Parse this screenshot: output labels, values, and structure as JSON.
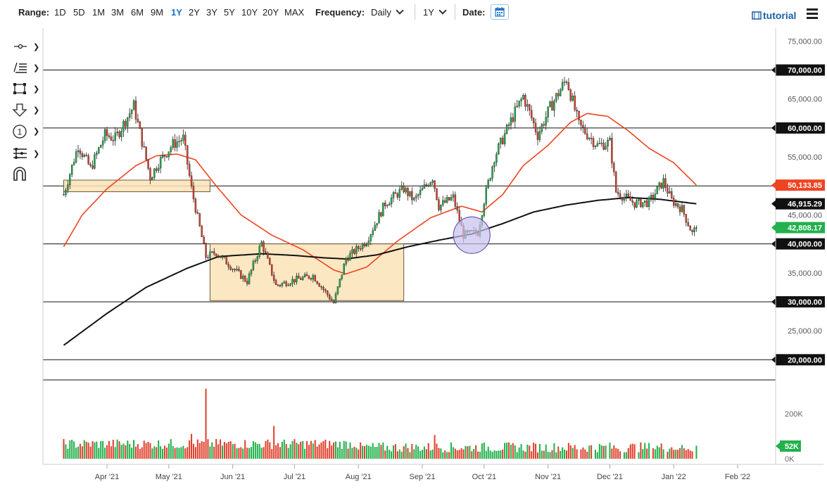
{
  "toolbar": {
    "range_label": "Range:",
    "ranges": [
      "1D",
      "5D",
      "1M",
      "3M",
      "6M",
      "9M",
      "1Y",
      "2Y",
      "3Y",
      "5Y",
      "10Y",
      "20Y",
      "MAX"
    ],
    "active_range": "1Y",
    "frequency_label": "Frequency:",
    "frequency_value": "Daily",
    "period_value": "1Y",
    "date_label": "Date:",
    "tutorial_label": "tutorial"
  },
  "tools": {
    "icons": [
      "crosshair-icon",
      "line-tools-icon",
      "rectangle-tool-icon",
      "arrow-down-tool-icon",
      "number-annotation-icon",
      "fibonacci-tool-icon",
      "magnet-icon"
    ],
    "number_label": "1"
  },
  "colors": {
    "up": "#22b14c",
    "down": "#e0412e",
    "ma_fast": "#ee4422",
    "ma_slow": "#111111",
    "zone_fill": "#fbe3b8",
    "zone_stroke": "#6b5a3a",
    "circle_fill": "#c9c1ee",
    "circle_stroke": "#6a5ab0",
    "badge_dark": "#111111",
    "badge_red": "#ee4422",
    "badge_green": "#22b14c"
  },
  "chart_data": {
    "type": "candlestick",
    "x_axis": {
      "labels": [
        "Apr '21",
        "May '21",
        "Jun '21",
        "Jul '21",
        "Aug '21",
        "Sep '21",
        "Oct '21",
        "Nov '21",
        "Dec '21",
        "Jan '22",
        "Feb '22"
      ]
    },
    "y_axis": {
      "range": [
        17000,
        76500
      ],
      "ticks": [
        "75,000.00",
        "65,000.00",
        "55,000.00",
        "45,000.00",
        "35,000.00",
        "25,000.00"
      ],
      "position": "right"
    },
    "horizontal_levels": [
      {
        "value": 70000,
        "label": "70,000.00"
      },
      {
        "value": 60000,
        "label": "60,000.00"
      },
      {
        "value": 50000,
        "label": ""
      },
      {
        "value": 40000,
        "label": "40,000.00"
      },
      {
        "value": 30000,
        "label": "30,000.00"
      },
      {
        "value": 20000,
        "label": "20,000.00"
      }
    ],
    "price_badges": [
      {
        "value": 50133.85,
        "label": "50,133.85",
        "color": "#ee4422",
        "series": "ma_fast"
      },
      {
        "value": 46915.29,
        "label": "46,915.29",
        "color": "#111111",
        "series": "ma_slow"
      },
      {
        "value": 42808.17,
        "label": "42,808.17",
        "color": "#22b14c",
        "series": "last_price"
      }
    ],
    "zones": [
      {
        "from_date": "2021-03-11",
        "to_date": "2021-05-21",
        "low": 49000,
        "high": 51000
      },
      {
        "from_date": "2021-05-21",
        "to_date": "2021-08-23",
        "low": 30200,
        "high": 40000
      }
    ],
    "circle_annotation": {
      "date": "2021-09-25",
      "price": 41500
    },
    "ohlc_keypoints": [
      [
        "2021-03-11",
        48500
      ],
      [
        "2021-03-18",
        57000
      ],
      [
        "2021-03-24",
        53000
      ],
      [
        "2021-03-31",
        58800
      ],
      [
        "2021-04-05",
        58200
      ],
      [
        "2021-04-14",
        63800
      ],
      [
        "2021-04-22",
        51500
      ],
      [
        "2021-04-26",
        54000
      ],
      [
        "2021-05-03",
        57200
      ],
      [
        "2021-05-08",
        58200
      ],
      [
        "2021-05-12",
        49500
      ],
      [
        "2021-05-19",
        37800
      ],
      [
        "2021-05-24",
        38500
      ],
      [
        "2021-06-08",
        33500
      ],
      [
        "2021-06-15",
        40200
      ],
      [
        "2021-06-22",
        32800
      ],
      [
        "2021-07-01",
        33800
      ],
      [
        "2021-07-10",
        34500
      ],
      [
        "2021-07-20",
        29800
      ],
      [
        "2021-07-26",
        37500
      ],
      [
        "2021-08-05",
        40500
      ],
      [
        "2021-08-14",
        47000
      ],
      [
        "2021-08-23",
        49500
      ],
      [
        "2021-08-28",
        47500
      ],
      [
        "2021-09-06",
        51500
      ],
      [
        "2021-09-09",
        46500
      ],
      [
        "2021-09-16",
        48000
      ],
      [
        "2021-09-21",
        41500
      ],
      [
        "2021-09-28",
        42000
      ],
      [
        "2021-10-01",
        47500
      ],
      [
        "2021-10-06",
        55000
      ],
      [
        "2021-10-15",
        62000
      ],
      [
        "2021-10-20",
        65500
      ],
      [
        "2021-10-27",
        58800
      ],
      [
        "2021-11-02",
        63500
      ],
      [
        "2021-11-10",
        68500
      ],
      [
        "2021-11-16",
        60500
      ],
      [
        "2021-11-25",
        57000
      ],
      [
        "2021-12-01",
        57500
      ],
      [
        "2021-12-04",
        49000
      ],
      [
        "2021-12-13",
        47000
      ],
      [
        "2021-12-20",
        47200
      ],
      [
        "2021-12-27",
        50800
      ],
      [
        "2021-12-31",
        47500
      ],
      [
        "2022-01-05",
        46000
      ],
      [
        "2022-01-10",
        41800
      ],
      [
        "2022-01-12",
        42808
      ]
    ],
    "ma_fast_keypoints": [
      [
        "2021-03-11",
        39500
      ],
      [
        "2021-03-20",
        45000
      ],
      [
        "2021-04-01",
        49500
      ],
      [
        "2021-04-15",
        53500
      ],
      [
        "2021-04-25",
        55200
      ],
      [
        "2021-05-05",
        55500
      ],
      [
        "2021-05-14",
        54500
      ],
      [
        "2021-05-24",
        50000
      ],
      [
        "2021-06-05",
        45000
      ],
      [
        "2021-06-20",
        41500
      ],
      [
        "2021-07-05",
        39000
      ],
      [
        "2021-07-20",
        35500
      ],
      [
        "2021-07-26",
        34800
      ],
      [
        "2021-08-05",
        36000
      ],
      [
        "2021-08-20",
        40500
      ],
      [
        "2021-09-05",
        44500
      ],
      [
        "2021-09-20",
        46500
      ],
      [
        "2021-09-30",
        45500
      ],
      [
        "2021-10-10",
        48500
      ],
      [
        "2021-10-20",
        53500
      ],
      [
        "2021-11-01",
        57000
      ],
      [
        "2021-11-12",
        61000
      ],
      [
        "2021-11-20",
        62500
      ],
      [
        "2021-11-30",
        62000
      ],
      [
        "2021-12-10",
        59500
      ],
      [
        "2021-12-20",
        56500
      ],
      [
        "2022-01-01",
        54000
      ],
      [
        "2022-01-12",
        50134
      ]
    ],
    "ma_slow_keypoints": [
      [
        "2021-03-11",
        22500
      ],
      [
        "2021-04-01",
        28000
      ],
      [
        "2021-04-20",
        32500
      ],
      [
        "2021-05-10",
        35800
      ],
      [
        "2021-05-25",
        37800
      ],
      [
        "2021-06-15",
        38300
      ],
      [
        "2021-07-01",
        38000
      ],
      [
        "2021-07-15",
        37600
      ],
      [
        "2021-07-26",
        37400
      ],
      [
        "2021-08-10",
        38100
      ],
      [
        "2021-08-25",
        39500
      ],
      [
        "2021-09-10",
        40700
      ],
      [
        "2021-09-25",
        41700
      ],
      [
        "2021-10-10",
        43500
      ],
      [
        "2021-10-25",
        45500
      ],
      [
        "2021-11-10",
        46700
      ],
      [
        "2021-11-25",
        47500
      ],
      [
        "2021-12-10",
        48000
      ],
      [
        "2021-12-25",
        47700
      ],
      [
        "2022-01-12",
        46915
      ]
    ],
    "volume": {
      "y_range": [
        0,
        330000
      ],
      "ticks": [
        "200K",
        "0K"
      ],
      "last_label": "52K",
      "last_color": "#22b14c",
      "spikes": [
        [
          "2021-05-19",
          310000
        ],
        [
          "2021-06-21",
          145000
        ],
        [
          "2021-05-12",
          110000
        ],
        [
          "2021-09-07",
          105000
        ]
      ]
    }
  }
}
